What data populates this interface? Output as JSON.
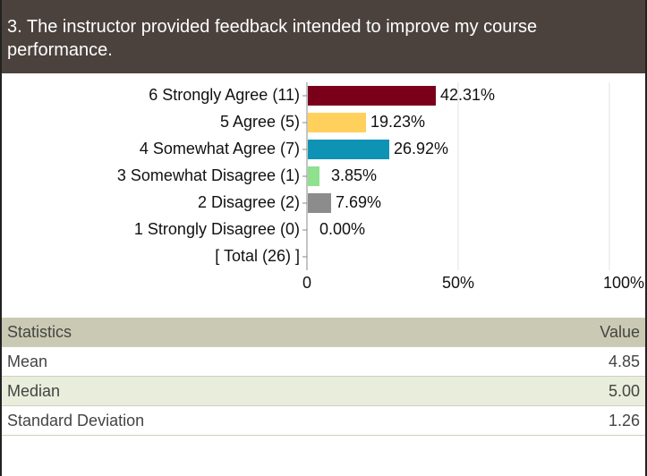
{
  "chart_data": {
    "type": "bar",
    "title": "3. The instructor provided feedback intended to improve my course performance.",
    "categories": [
      "6 Strongly Agree (11)",
      "5 Agree (5)",
      "4 Somewhat Agree (7)",
      "3 Somewhat Disagree (1)",
      "2 Disagree (2)",
      "1 Strongly Disagree (0)",
      "[ Total (26) ]"
    ],
    "values": [
      42.31,
      19.23,
      26.92,
      3.85,
      7.69,
      0.0,
      null
    ],
    "value_labels": [
      "42.31%",
      "19.23%",
      "26.92%",
      "3.85%",
      "7.69%",
      "0.00%",
      null
    ],
    "colors": [
      "#7a0019",
      "#ffd15c",
      "#0e93b4",
      "#8fe08f",
      "#8c8c8c",
      "#cccccc",
      null
    ],
    "xlim": [
      0,
      100
    ],
    "xticks": [
      0,
      {
        "value": 50,
        "label": "50%"
      },
      {
        "value": 100,
        "label": "100%"
      }
    ],
    "grid": true
  },
  "statistics": {
    "header": [
      "Statistics",
      "Value"
    ],
    "rows": [
      [
        "Mean",
        "4.85"
      ],
      [
        "Median",
        "5.00"
      ],
      [
        "Standard Deviation",
        "1.26"
      ]
    ]
  }
}
